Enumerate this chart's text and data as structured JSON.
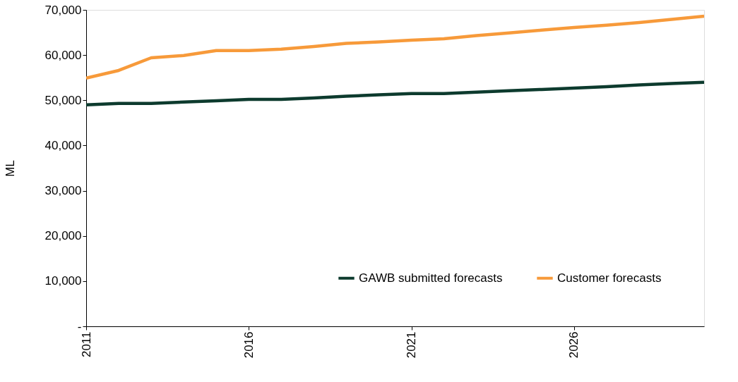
{
  "chart_data": {
    "type": "line",
    "ylabel": "ML",
    "x": [
      2011,
      2012,
      2013,
      2014,
      2015,
      2016,
      2017,
      2018,
      2019,
      2020,
      2021,
      2022,
      2023,
      2024,
      2025,
      2026,
      2027,
      2028,
      2029,
      2030
    ],
    "series": [
      {
        "name": "GAWB submitted forecasts",
        "color": "#0d3b2e",
        "values": [
          49000,
          49300,
          49300,
          49600,
          49900,
          50200,
          50200,
          50500,
          50900,
          51200,
          51500,
          51500,
          51800,
          52100,
          52400,
          52700,
          53000,
          53400,
          53700,
          54000
        ]
      },
      {
        "name": "Customer forecasts",
        "color": "#f79a3a",
        "values": [
          54900,
          56600,
          59400,
          59900,
          61000,
          61000,
          61300,
          61900,
          62600,
          62900,
          63300,
          63600,
          64300,
          64900,
          65500,
          66100,
          66600,
          67200,
          67900,
          68600
        ]
      }
    ],
    "xlim": [
      2011,
      2030
    ],
    "xticks": [
      2011,
      2016,
      2021,
      2026
    ],
    "ylim": [
      0,
      70000
    ],
    "yticks": [
      {
        "value": 0,
        "label": "-"
      },
      {
        "value": 10000,
        "label": "10,000"
      },
      {
        "value": 20000,
        "label": "20,000"
      },
      {
        "value": 30000,
        "label": "30,000"
      },
      {
        "value": 40000,
        "label": "40,000"
      },
      {
        "value": 50000,
        "label": "50,000"
      },
      {
        "value": 60000,
        "label": "60,000"
      },
      {
        "value": 70000,
        "label": "70,000"
      }
    ],
    "grid": false,
    "legend": "bottom right",
    "marker": "none",
    "line_style": "solid"
  }
}
